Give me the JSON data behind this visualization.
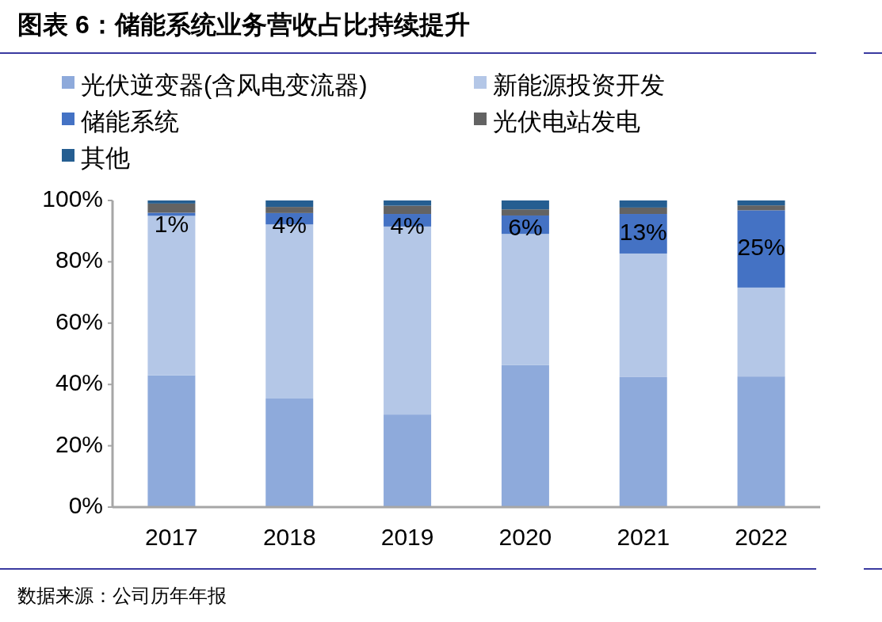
{
  "chart_data": {
    "type": "bar",
    "stacked": true,
    "title": "图表 6：储能系统业务营收占比持续提升",
    "categories": [
      "2017",
      "2018",
      "2019",
      "2020",
      "2021",
      "2022"
    ],
    "series": [
      {
        "name": "光伏逆变器(含风电变流器)",
        "color": "#8eaadb",
        "values": [
          43,
          35.4,
          30.2,
          46.3,
          42.4,
          42.6
        ]
      },
      {
        "name": "新能源投资开发",
        "color": "#b4c7e7",
        "values": [
          52,
          56.8,
          61.3,
          42.8,
          40.3,
          29.0
        ]
      },
      {
        "name": "储能系统",
        "color": "#4472c4",
        "values": [
          1,
          3.7,
          4.1,
          6.0,
          12.9,
          25.2
        ],
        "value_labels": [
          "1%",
          "4%",
          "4%",
          "6%",
          "13%",
          "25%"
        ]
      },
      {
        "name": "光伏电站发电",
        "color": "#636363",
        "values": [
          3,
          2.0,
          2.7,
          2.0,
          2.1,
          1.6
        ]
      },
      {
        "name": "其他",
        "color": "#255e91",
        "values": [
          1,
          2.1,
          1.7,
          2.9,
          2.3,
          1.6
        ]
      }
    ],
    "ylim": [
      0,
      100
    ],
    "yticks": [
      {
        "value": 0,
        "label": "0%"
      },
      {
        "value": 20,
        "label": "20%"
      },
      {
        "value": 40,
        "label": "40%"
      },
      {
        "value": 60,
        "label": "60%"
      },
      {
        "value": 80,
        "label": "80%"
      },
      {
        "value": 100,
        "label": "100%"
      }
    ],
    "grid": false,
    "legend": "top",
    "annotations": [
      "数据来源：公司历年年报"
    ]
  }
}
